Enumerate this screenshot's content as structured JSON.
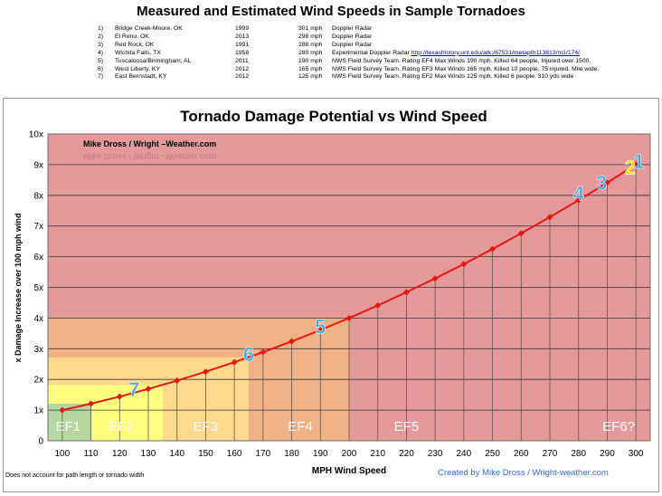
{
  "page": {
    "title": "Measured and Estimated Wind Speeds in Sample Tornadoes",
    "footnote": "Does not account for path length or tornado width",
    "credit": "Created by Mike Dross  /  Wright-weather.com"
  },
  "tornadoes": [
    {
      "num": "1)",
      "location": "Bridge Creek-Moore, OK",
      "year": "1999",
      "speed": "301 mph",
      "source": "Doppler Radar",
      "link": ""
    },
    {
      "num": "2)",
      "location": "El Reno, OK",
      "year": "2013",
      "speed": "298 mph",
      "source": "Doppler Radar",
      "link": ""
    },
    {
      "num": "3)",
      "location": "Red Rock, OK",
      "year": "1991",
      "speed": "288 mph",
      "source": "Doppler Radar",
      "link": ""
    },
    {
      "num": "4)",
      "location": "Wichita Falls, TX",
      "year": "1958",
      "speed": "280  mph",
      "source": "Experimental Doppler Radar",
      "link": "http://texashistory.unt.edu/ark:/67531/metapth113813/m1/174/"
    },
    {
      "num": "5)",
      "location": "Tuscaloosa/Birmingham, AL",
      "year": "2011",
      "speed": "190  mph",
      "source": "NWS Field Survey Team. Rating EF4 Max Winds 190 mph. Killed 64  people, Injured over 1500.",
      "link": ""
    },
    {
      "num": "6)",
      "location": "West Liberty, KY",
      "year": "2012",
      "speed": "165  mph",
      "source": "NWS Field Survey Team. Rating EF3 Max Winds 165 mph. Killed 10 people. 75 injured. Mile wide.",
      "link": ""
    },
    {
      "num": "7)",
      "location": "East Bernstadt, KY",
      "year": "2012",
      "speed": "125  mph",
      "source": "NWS Field Survey Team. Rating EF2 Max Winds 125 mph. Killed 6 people.  310 yds wide",
      "link": ""
    }
  ],
  "chart_data": {
    "type": "line",
    "title": "Tornado Damage Potential vs Wind Speed",
    "watermark": "Mike Dross / Wright –Weather.com",
    "xlabel": "MPH Wind Speed",
    "ylabel": "x Damage Increase  over 100 mph wind",
    "xlim": [
      95,
      305
    ],
    "ylim": [
      0,
      10
    ],
    "x_ticks": [
      "100",
      "110",
      "120",
      "130",
      "140",
      "150",
      "160",
      "170",
      "180",
      "190",
      "200",
      "210",
      "220",
      "230",
      "240",
      "250",
      "260",
      "270",
      "280",
      "290",
      "300"
    ],
    "y_ticks": [
      "0",
      "1x",
      "2x",
      "3x",
      "4x",
      "5x",
      "6x",
      "7x",
      "8x",
      "9x",
      "10x"
    ],
    "grid": "horizontal",
    "series": [
      {
        "color": "#e8170f",
        "x": [
          100,
          110,
          120,
          130,
          140,
          150,
          160,
          170,
          180,
          190,
          200,
          210,
          220,
          230,
          240,
          250,
          260,
          270,
          280,
          290,
          300
        ],
        "y": [
          1.0,
          1.21,
          1.44,
          1.69,
          1.96,
          2.25,
          2.56,
          2.89,
          3.24,
          3.61,
          4.0,
          4.41,
          4.84,
          5.29,
          5.76,
          6.25,
          6.76,
          7.29,
          7.84,
          8.41,
          9.0
        ]
      }
    ],
    "zones": [
      {
        "label": "EF1",
        "x_end": 110,
        "y_top": 1.21,
        "color": "#b6d7a0"
      },
      {
        "label": "EF2",
        "x_end": 135,
        "y_top": 1.82,
        "color": "#ffff7f"
      },
      {
        "label": "EF3",
        "x_end": 165,
        "y_top": 2.72,
        "color": "#ffd98e"
      },
      {
        "label": "EF4",
        "x_end": 200,
        "y_top": 4.0,
        "color": "#f2b184"
      },
      {
        "label": "EF5",
        "x_end": 305,
        "y_top": 10,
        "color": "#e6999a"
      },
      {
        "label": "EF6?",
        "x_end": null,
        "y_top": null,
        "color": null
      }
    ],
    "markers": [
      {
        "label": "1",
        "x": 301,
        "y": 9.0,
        "color": "#25b3e6"
      },
      {
        "label": "2",
        "x": 298,
        "y": 8.8,
        "color": "#ffe500"
      },
      {
        "label": "3",
        "x": 288,
        "y": 8.3,
        "color": "#3fa7e0"
      },
      {
        "label": "4",
        "x": 280,
        "y": 7.95,
        "color": "#3fa7e0"
      },
      {
        "label": "5",
        "x": 190,
        "y": 3.61,
        "color": "#3fa7e0"
      },
      {
        "label": "6",
        "x": 165,
        "y": 2.72,
        "color": "#3fa7e0"
      },
      {
        "label": "7",
        "x": 125,
        "y": 1.56,
        "color": "#3fa7e0"
      }
    ]
  }
}
